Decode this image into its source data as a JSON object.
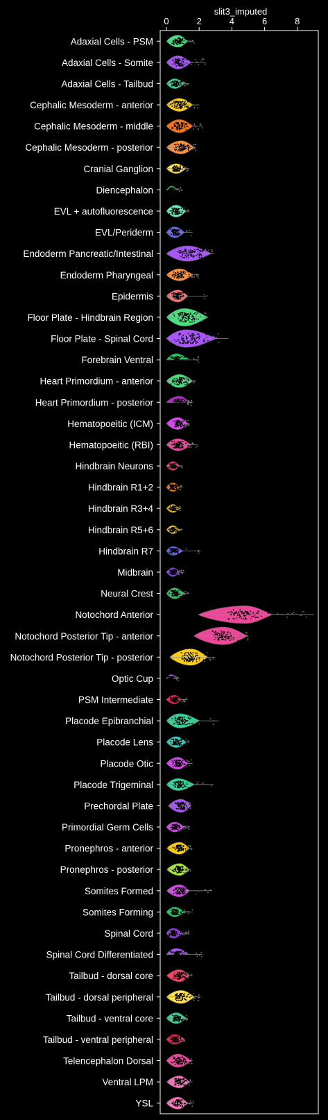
{
  "chart_data": {
    "type": "violin",
    "xlabel": "slit3_imputed",
    "ylabel": "",
    "xlim": [
      -0.4,
      9.3
    ],
    "xticks": [
      0,
      2,
      4,
      6,
      8
    ],
    "xaxis_position": "top",
    "grid": false,
    "legend": "none",
    "background": "#000000",
    "frame_color": "#ffffff",
    "categories": [
      {
        "label": "Adaxial Cells - PSM",
        "color": "#4ade80",
        "median": 0.7,
        "q1": 0.4,
        "q3": 1.0,
        "max": 1.7,
        "width": 0.55
      },
      {
        "label": "Adaxial Cells - Somite",
        "color": "#a855f7",
        "median": 0.7,
        "q1": 0.4,
        "q3": 1.1,
        "max": 2.4,
        "width": 0.6
      },
      {
        "label": "Adaxial Cells - Tailbud",
        "color": "#34d399",
        "median": 0.5,
        "q1": 0.3,
        "q3": 0.8,
        "max": 1.4,
        "width": 0.45
      },
      {
        "label": "Cephalic Mesoderm - anterior",
        "color": "#facc15",
        "median": 0.8,
        "q1": 0.4,
        "q3": 1.2,
        "max": 2.0,
        "width": 0.6
      },
      {
        "label": "Cephalic Mesoderm - middle",
        "color": "#f97316",
        "median": 0.8,
        "q1": 0.4,
        "q3": 1.2,
        "max": 2.2,
        "width": 0.6
      },
      {
        "label": "Cephalic Mesoderm - posterior",
        "color": "#fb923c",
        "median": 0.9,
        "q1": 0.5,
        "q3": 1.3,
        "max": 1.8,
        "width": 0.6
      },
      {
        "label": "Cranial Ganglion",
        "color": "#fde047",
        "median": 0.6,
        "q1": 0.3,
        "q3": 0.9,
        "max": 1.4,
        "width": 0.45
      },
      {
        "label": "Diencephalon",
        "color": "#22c55e",
        "median": 0.3,
        "q1": 0.1,
        "q3": 0.5,
        "max": 1.0,
        "width": 0.35
      },
      {
        "label": "EVL + autofluorescence",
        "color": "#6ee7b7",
        "median": 0.6,
        "q1": 0.3,
        "q3": 0.9,
        "max": 1.4,
        "width": 0.55
      },
      {
        "label": "EVL/Periderm",
        "color": "#6366f1",
        "median": 0.5,
        "q1": 0.3,
        "q3": 0.8,
        "max": 1.6,
        "width": 0.5
      },
      {
        "label": "Endoderm Pancreatic/Intestinal",
        "color": "#a855f7",
        "median": 1.3,
        "q1": 0.7,
        "q3": 2.0,
        "max": 2.9,
        "width": 0.7
      },
      {
        "label": "Endoderm Pharyngeal",
        "color": "#fb923c",
        "median": 0.8,
        "q1": 0.4,
        "q3": 1.2,
        "max": 2.0,
        "width": 0.55
      },
      {
        "label": "Epidermis",
        "color": "#f87171",
        "median": 0.7,
        "q1": 0.4,
        "q3": 1.0,
        "max": 2.5,
        "width": 0.55
      },
      {
        "label": "Floor Plate - Hindbrain Region",
        "color": "#4ade80",
        "median": 1.1,
        "q1": 0.6,
        "q3": 1.8,
        "max": 2.4,
        "width": 0.8
      },
      {
        "label": "Floor Plate - Spinal Cord",
        "color": "#a855f7",
        "median": 1.2,
        "q1": 0.6,
        "q3": 2.1,
        "max": 3.8,
        "width": 0.8
      },
      {
        "label": "Forebrain Ventral",
        "color": "#22c55e",
        "median": 0.6,
        "q1": 0.3,
        "q3": 1.0,
        "max": 2.0,
        "width": 0.55
      },
      {
        "label": "Heart Primordium - anterior",
        "color": "#4ade80",
        "median": 0.8,
        "q1": 0.4,
        "q3": 1.2,
        "max": 1.8,
        "width": 0.6
      },
      {
        "label": "Heart Primordium - posterior",
        "color": "#c026d3",
        "median": 0.8,
        "q1": 0.4,
        "q3": 1.1,
        "max": 1.6,
        "width": 0.55
      },
      {
        "label": "Hematopoeitic (ICM)",
        "color": "#d946ef",
        "median": 0.7,
        "q1": 0.4,
        "q3": 1.0,
        "max": 1.4,
        "width": 0.55
      },
      {
        "label": "Hematopoeitic (RBI)",
        "color": "#ec4899",
        "median": 0.7,
        "q1": 0.4,
        "q3": 1.1,
        "max": 1.9,
        "width": 0.55
      },
      {
        "label": "Hindbrain Neurons",
        "color": "#f43f5e",
        "median": 0.4,
        "q1": 0.2,
        "q3": 0.6,
        "max": 1.0,
        "width": 0.4
      },
      {
        "label": "Hindbrain R1+2",
        "color": "#f97316",
        "median": 0.4,
        "q1": 0.2,
        "q3": 0.6,
        "max": 1.0,
        "width": 0.4
      },
      {
        "label": "Hindbrain R3+4",
        "color": "#eab308",
        "median": 0.4,
        "q1": 0.2,
        "q3": 0.6,
        "max": 0.9,
        "width": 0.38
      },
      {
        "label": "Hindbrain R5+6",
        "color": "#facc15",
        "median": 0.4,
        "q1": 0.2,
        "q3": 0.6,
        "max": 1.0,
        "width": 0.38
      },
      {
        "label": "Hindbrain R7",
        "color": "#6366f1",
        "median": 0.4,
        "q1": 0.2,
        "q3": 0.7,
        "max": 2.1,
        "width": 0.4
      },
      {
        "label": "Midbrain",
        "color": "#7c3aed",
        "median": 0.4,
        "q1": 0.2,
        "q3": 0.6,
        "max": 1.1,
        "width": 0.4
      },
      {
        "label": "Neural Crest",
        "color": "#22c55e",
        "median": 0.5,
        "q1": 0.3,
        "q3": 0.8,
        "max": 1.4,
        "width": 0.5
      },
      {
        "label": "Notochord Anterior",
        "color": "#ec4899",
        "median": 4.8,
        "q1": 3.7,
        "q3": 5.6,
        "max": 9.0,
        "width": 0.8
      },
      {
        "label": "Notochord Posterior Tip - anterior",
        "color": "#ec4899",
        "median": 3.5,
        "q1": 2.8,
        "q3": 4.2,
        "max": 5.0,
        "width": 0.8
      },
      {
        "label": "Notochord Posterior Tip - posterior",
        "color": "#facc15",
        "median": 1.5,
        "q1": 1.0,
        "q3": 2.0,
        "max": 3.0,
        "width": 0.75
      },
      {
        "label": "Optic Cup",
        "color": "#a855f7",
        "median": 0.3,
        "q1": 0.1,
        "q3": 0.5,
        "max": 0.8,
        "width": 0.35
      },
      {
        "label": "PSM Intermediate",
        "color": "#e11d48",
        "median": 0.5,
        "q1": 0.3,
        "q3": 0.7,
        "max": 1.3,
        "width": 0.4
      },
      {
        "label": "Placode Epibranchial",
        "color": "#34d399",
        "median": 0.8,
        "q1": 0.4,
        "q3": 1.4,
        "max": 3.2,
        "width": 0.65
      },
      {
        "label": "Placode Lens",
        "color": "#2dd4bf",
        "median": 0.6,
        "q1": 0.3,
        "q3": 0.9,
        "max": 1.4,
        "width": 0.5
      },
      {
        "label": "Placode Otic",
        "color": "#d946ef",
        "median": 0.7,
        "q1": 0.4,
        "q3": 1.0,
        "max": 1.6,
        "width": 0.55
      },
      {
        "label": "Placode Trigeminal",
        "color": "#34d399",
        "median": 0.7,
        "q1": 0.4,
        "q3": 1.2,
        "max": 2.9,
        "width": 0.55
      },
      {
        "label": "Prechordal Plate",
        "color": "#a855f7",
        "median": 0.9,
        "q1": 0.6,
        "q3": 1.2,
        "max": 1.5,
        "width": 0.6
      },
      {
        "label": "Primordial Germ Cells",
        "color": "#d946ef",
        "median": 0.5,
        "q1": 0.3,
        "q3": 0.8,
        "max": 1.4,
        "width": 0.45
      },
      {
        "label": "Pronephros - anterior",
        "color": "#facc15",
        "median": 0.8,
        "q1": 0.5,
        "q3": 1.1,
        "max": 1.6,
        "width": 0.55
      },
      {
        "label": "Pronephros - posterior",
        "color": "#a3e635",
        "median": 0.8,
        "q1": 0.5,
        "q3": 1.1,
        "max": 1.5,
        "width": 0.55
      },
      {
        "label": "Somites Formed",
        "color": "#d946ef",
        "median": 0.8,
        "q1": 0.5,
        "q3": 1.1,
        "max": 2.8,
        "width": 0.55
      },
      {
        "label": "Somites Forming",
        "color": "#22c55e",
        "median": 0.5,
        "q1": 0.3,
        "q3": 0.8,
        "max": 1.6,
        "width": 0.45
      },
      {
        "label": "Spinal Cord",
        "color": "#9333ea",
        "median": 0.4,
        "q1": 0.2,
        "q3": 0.7,
        "max": 1.4,
        "width": 0.45
      },
      {
        "label": "Spinal Cord Differentiated",
        "color": "#a855f7",
        "median": 0.6,
        "q1": 0.3,
        "q3": 1.0,
        "max": 2.2,
        "width": 0.55
      },
      {
        "label": "Tailbud - dorsal core",
        "color": "#f43f5e",
        "median": 0.8,
        "q1": 0.5,
        "q3": 1.1,
        "max": 1.6,
        "width": 0.55
      },
      {
        "label": "Tailbud - dorsal peripheral",
        "color": "#fde047",
        "median": 0.9,
        "q1": 0.5,
        "q3": 1.3,
        "max": 2.1,
        "width": 0.6
      },
      {
        "label": "Tailbud - ventral core",
        "color": "#34d399",
        "median": 0.6,
        "q1": 0.3,
        "q3": 0.9,
        "max": 1.3,
        "width": 0.5
      },
      {
        "label": "Tailbud - ventral peripheral",
        "color": "#e11d48",
        "median": 0.5,
        "q1": 0.3,
        "q3": 0.8,
        "max": 1.1,
        "width": 0.45
      },
      {
        "label": "Telencephalon Dorsal",
        "color": "#ec4899",
        "median": 0.7,
        "q1": 0.4,
        "q3": 1.1,
        "max": 1.6,
        "width": 0.6
      },
      {
        "label": "Ventral LPM",
        "color": "#f472b6",
        "median": 0.8,
        "q1": 0.5,
        "q3": 1.1,
        "max": 1.6,
        "width": 0.55
      },
      {
        "label": "YSL",
        "color": "#f472b6",
        "median": 0.7,
        "q1": 0.4,
        "q3": 1.0,
        "max": 1.7,
        "width": 0.55
      }
    ]
  }
}
